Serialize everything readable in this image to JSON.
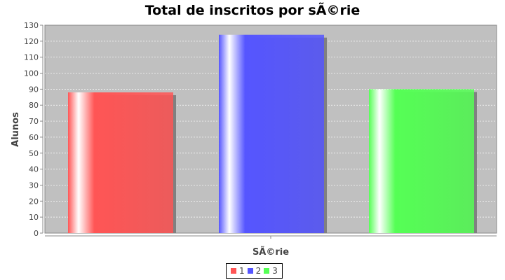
{
  "chart_data": {
    "type": "bar",
    "title": "Total de inscritos por sÃ©rie",
    "xlabel": "SÃ©rie",
    "ylabel": "Alunos",
    "ylim": [
      0,
      130
    ],
    "yticks": [
      0,
      10,
      20,
      30,
      40,
      50,
      60,
      70,
      80,
      90,
      100,
      110,
      120,
      130
    ],
    "grid": true,
    "legend_position": "bottom",
    "series": [
      {
        "name": "1",
        "values": [
          88
        ],
        "color": "#ff5555"
      },
      {
        "name": "2",
        "values": [
          124
        ],
        "color": "#5555ff"
      },
      {
        "name": "3",
        "values": [
          90
        ],
        "color": "#55ff55"
      }
    ]
  }
}
